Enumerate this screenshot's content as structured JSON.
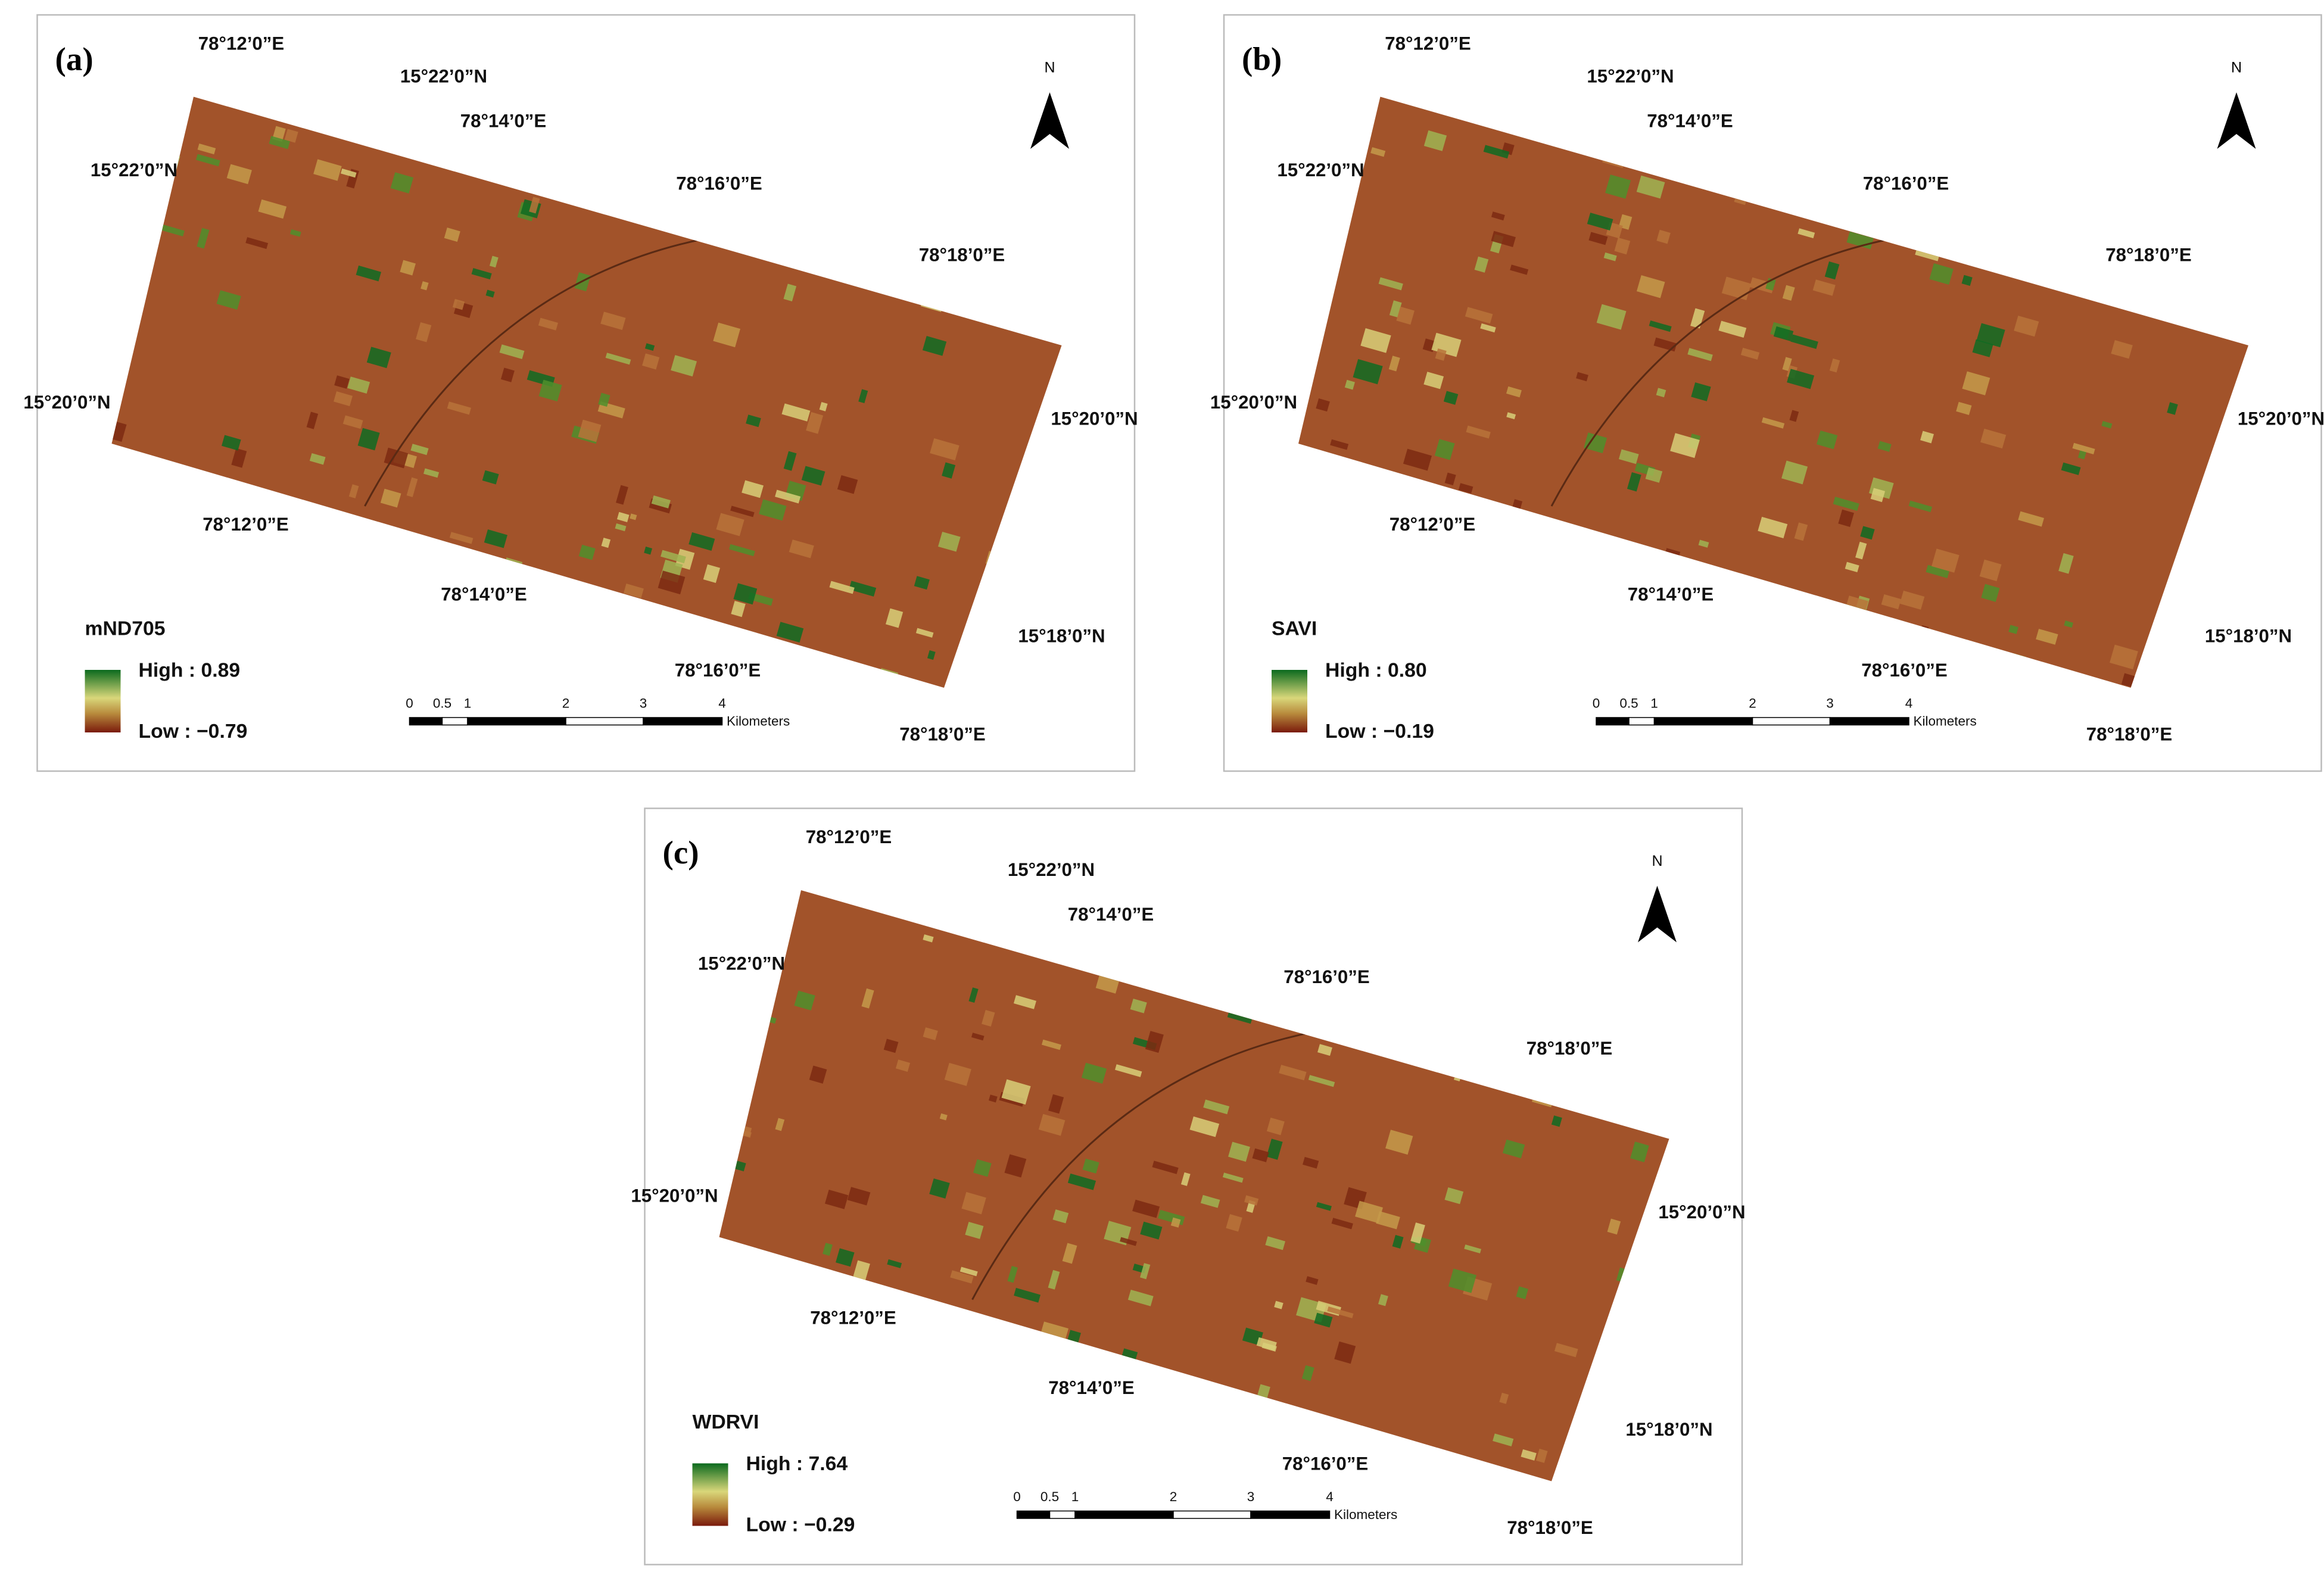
{
  "panels": [
    {
      "label": "(a)",
      "legend": {
        "title": "mND705",
        "high": "High : 0.89",
        "low": "Low : −0.79"
      },
      "north": "N",
      "coordinates": [
        "78°12’0”E",
        "15°22’0”N",
        "78°14’0”E",
        "15°22’0”N",
        "78°16’0”E",
        "78°18’0”E",
        "15°20’0”N",
        "15°20’0”N",
        "78°12’0”E",
        "78°14’0”E",
        "78°16’0”E",
        "15°18’0”N",
        "78°18’0”E"
      ],
      "scale": {
        "ticks": [
          "0",
          "0.5",
          "1",
          "2",
          "3",
          "4"
        ],
        "unit": "Kilometers"
      }
    },
    {
      "label": "(b)",
      "legend": {
        "title": "SAVI",
        "high": "High : 0.80",
        "low": "Low : −0.19"
      },
      "north": "N",
      "coordinates": [
        "78°12’0”E",
        "15°22’0”N",
        "78°14’0”E",
        "15°22’0”N",
        "78°16’0”E",
        "78°18’0”E",
        "15°20’0”N",
        "15°20’0”N",
        "78°12’0”E",
        "78°14’0”E",
        "78°16’0”E",
        "15°18’0”N",
        "78°18’0”E"
      ],
      "scale": {
        "ticks": [
          "0",
          "0.5",
          "1",
          "2",
          "3",
          "4"
        ],
        "unit": "Kilometers"
      }
    },
    {
      "label": "(c)",
      "legend": {
        "title": "WDRVI",
        "high": "High : 7.64",
        "low": "Low : −0.29"
      },
      "north": "N",
      "coordinates": [
        "78°12’0”E",
        "15°22’0”N",
        "78°14’0”E",
        "15°22’0”N",
        "78°16’0”E",
        "78°18’0”E",
        "15°20’0”N",
        "15°20’0”N",
        "78°12’0”E",
        "78°14’0”E",
        "78°16’0”E",
        "15°18’0”N",
        "78°18’0”E"
      ],
      "scale": {
        "ticks": [
          "0",
          "0.5",
          "1",
          "2",
          "3",
          "4"
        ],
        "unit": "Kilometers"
      }
    }
  ]
}
